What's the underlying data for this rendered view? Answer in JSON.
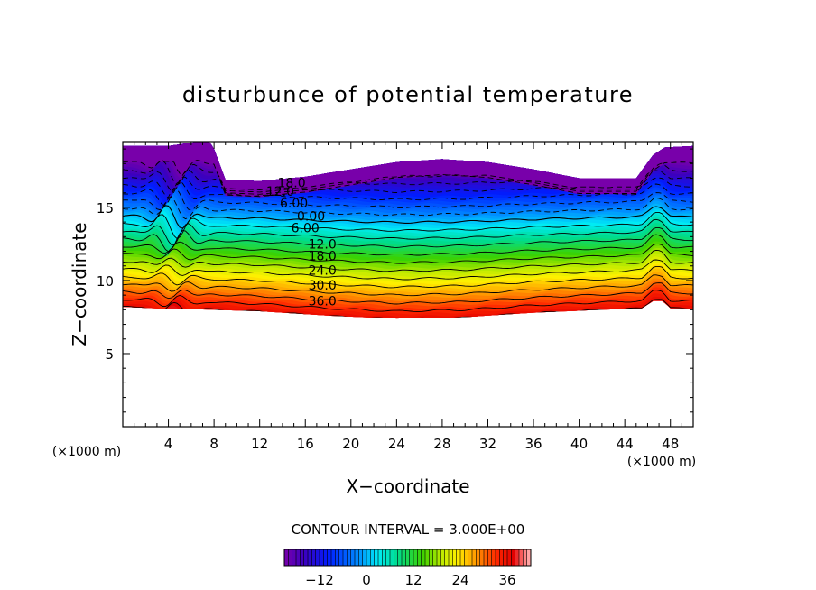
{
  "chart_data": {
    "type": "contour",
    "title": "disturbunce of potential temperature",
    "xlabel": "X−coordinate",
    "ylabel": "Z−coordinate",
    "x_unit_left": "(×1000 m)",
    "x_unit_right": "(×1000 m)",
    "xlim": [
      0,
      50
    ],
    "ylim": [
      0,
      19.5
    ],
    "x_ticks": [
      4,
      8,
      12,
      16,
      20,
      24,
      28,
      32,
      36,
      40,
      44,
      48
    ],
    "y_ticks": [
      5,
      10,
      15
    ],
    "contour_interval_label": "CONTOUR INTERVAL = 3.000E+00",
    "contour_interval": 3.0,
    "colorbar_range": [
      -21,
      42
    ],
    "colorbar_ticks": [
      -12,
      0,
      12,
      24,
      36
    ],
    "colorbar_tick_labels": [
      "−12",
      "0",
      "12",
      "24",
      "36"
    ],
    "bottom_boundary": [
      [
        0,
        8.2
      ],
      [
        3,
        8.1
      ],
      [
        8,
        8.0
      ],
      [
        12,
        7.9
      ],
      [
        18,
        7.6
      ],
      [
        24,
        7.4
      ],
      [
        30,
        7.5
      ],
      [
        36,
        7.8
      ],
      [
        42,
        8.0
      ],
      [
        45.5,
        8.1
      ],
      [
        46.5,
        8.6
      ],
      [
        47.3,
        8.6
      ],
      [
        48,
        8.1
      ],
      [
        50,
        8.1
      ]
    ],
    "top_boundary": [
      [
        0,
        19.2
      ],
      [
        4,
        19.2
      ],
      [
        7.5,
        19.6
      ],
      [
        8,
        19.0
      ],
      [
        9,
        16.9
      ],
      [
        12,
        16.8
      ],
      [
        16,
        17.1
      ],
      [
        20,
        17.6
      ],
      [
        24,
        18.1
      ],
      [
        28,
        18.3
      ],
      [
        32,
        18.1
      ],
      [
        36,
        17.6
      ],
      [
        40,
        17.0
      ],
      [
        45,
        17.0
      ],
      [
        46.5,
        18.6
      ],
      [
        47.5,
        19.1
      ],
      [
        50,
        19.2
      ]
    ],
    "contour_labels": [
      {
        "text": "18.0",
        "x": 14.8,
        "z": 16.7
      },
      {
        "text": "12.0",
        "x": 13.8,
        "z": 16.1
      },
      {
        "text": "6.00",
        "x": 15.0,
        "z": 15.3
      },
      {
        "text": "0.00",
        "x": 16.5,
        "z": 14.4
      },
      {
        "text": "6.00",
        "x": 16.0,
        "z": 13.6
      },
      {
        "text": "12.0",
        "x": 17.5,
        "z": 12.5
      },
      {
        "text": "18.0",
        "x": 17.5,
        "z": 11.7
      },
      {
        "text": "24.0",
        "x": 17.5,
        "z": 10.7
      },
      {
        "text": "30.0",
        "x": 17.5,
        "z": 9.7
      },
      {
        "text": "36.0",
        "x": 17.5,
        "z": 8.6
      }
    ]
  }
}
